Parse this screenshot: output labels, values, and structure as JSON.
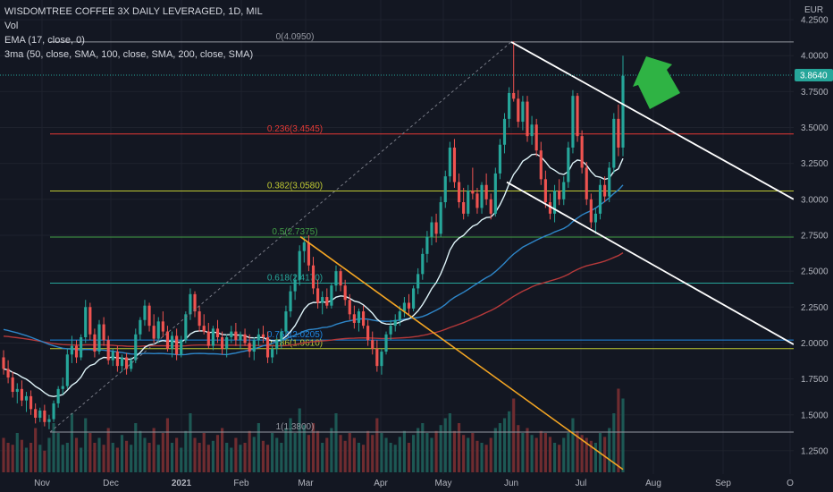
{
  "legend": {
    "title": "WISDOMTREE COFFEE 3X DAILY LEVERAGED, 1D, MIL",
    "vol": "Vol",
    "ema": "EMA (17, close, 0)",
    "ma3": "3ma (50, close, SMA, 100, close, SMA, 200, close, SMA)"
  },
  "currency": "EUR",
  "last_price": "3.8640",
  "colors": {
    "bg": "#131722",
    "up": "#26a69a",
    "down": "#ef5350",
    "ema": "#dff4f9",
    "sma50": "#2e86c9",
    "sma100": "#b5393a",
    "sma200": "#b23a3a",
    "channel": "#ffffff",
    "trend": "#f5a623",
    "arrow": "#2fb344",
    "price_tag": "#26a69a"
  },
  "chart_data": {
    "type": "candlestick",
    "ylim": [
      1.1,
      4.3
    ],
    "y_ticks": [
      "4.2500",
      "4.0000",
      "3.7500",
      "3.5000",
      "3.2500",
      "3.0000",
      "2.7500",
      "2.5000",
      "2.2500",
      "2.0000",
      "1.7500",
      "1.5000",
      "1.2500"
    ],
    "x_ticks": [
      "Nov",
      "Dec",
      "2021",
      "Feb",
      "Mar",
      "Apr",
      "May",
      "Jun",
      "Jul",
      "Aug",
      "Sep",
      "O"
    ],
    "fib_levels": [
      {
        "label": "0(4.0950)",
        "value": 4.095,
        "color": "#9598a1"
      },
      {
        "label": "0.236(3.4545)",
        "value": 3.4545,
        "color": "#e53935"
      },
      {
        "label": "0.382(3.0580)",
        "value": 3.058,
        "color": "#c0ca33"
      },
      {
        "label": "0.5(2.7375)",
        "value": 2.7375,
        "color": "#43a047"
      },
      {
        "label": "0.618(2.4170)",
        "value": 2.417,
        "color": "#26a69a"
      },
      {
        "label": "0.764(2.0205)",
        "value": 2.0205,
        "color": "#1e88e5"
      },
      {
        "label": "0.786(1.9610)",
        "value": 1.961,
        "color": "#c0ca33"
      },
      {
        "label": "1(1.3800)",
        "value": 1.38,
        "color": "#9598a1"
      }
    ],
    "candles": [
      [
        1.9,
        1.95,
        1.78,
        1.82
      ],
      [
        1.82,
        1.88,
        1.72,
        1.76
      ],
      [
        1.76,
        1.8,
        1.62,
        1.66
      ],
      [
        1.66,
        1.72,
        1.58,
        1.68
      ],
      [
        1.68,
        1.74,
        1.56,
        1.6
      ],
      [
        1.6,
        1.66,
        1.52,
        1.63
      ],
      [
        1.63,
        1.67,
        1.5,
        1.54
      ],
      [
        1.54,
        1.58,
        1.44,
        1.48
      ],
      [
        1.48,
        1.55,
        1.45,
        1.53
      ],
      [
        1.53,
        1.57,
        1.42,
        1.45
      ],
      [
        1.45,
        1.5,
        1.4,
        1.47
      ],
      [
        1.47,
        1.6,
        1.45,
        1.58
      ],
      [
        1.58,
        1.7,
        1.55,
        1.68
      ],
      [
        1.68,
        1.76,
        1.64,
        1.7
      ],
      [
        1.7,
        1.96,
        1.68,
        1.92
      ],
      [
        1.92,
        2.05,
        1.86,
        1.98
      ],
      [
        1.98,
        2.02,
        1.86,
        1.9
      ],
      [
        1.9,
        2.06,
        1.88,
        2.04
      ],
      [
        2.04,
        2.3,
        2.0,
        2.25
      ],
      [
        2.25,
        2.28,
        2.02,
        2.06
      ],
      [
        2.06,
        2.1,
        1.9,
        1.94
      ],
      [
        1.94,
        2.16,
        1.92,
        2.13
      ],
      [
        2.13,
        2.18,
        1.98,
        2.02
      ],
      [
        2.02,
        2.05,
        1.85,
        1.88
      ],
      [
        1.88,
        1.96,
        1.84,
        1.94
      ],
      [
        1.94,
        1.98,
        1.8,
        1.84
      ],
      [
        1.84,
        1.92,
        1.8,
        1.9
      ],
      [
        1.9,
        1.93,
        1.78,
        1.82
      ],
      [
        1.82,
        1.9,
        1.8,
        1.88
      ],
      [
        1.88,
        2.1,
        1.86,
        2.06
      ],
      [
        2.06,
        2.18,
        2.02,
        2.16
      ],
      [
        2.16,
        2.3,
        2.12,
        2.26
      ],
      [
        2.26,
        2.28,
        2.08,
        2.12
      ],
      [
        2.12,
        2.2,
        2.0,
        2.03
      ],
      [
        2.03,
        2.18,
        2.0,
        2.15
      ],
      [
        2.15,
        2.22,
        2.04,
        2.08
      ],
      [
        2.08,
        2.12,
        1.94,
        1.96
      ],
      [
        1.96,
        2.08,
        1.9,
        2.05
      ],
      [
        2.05,
        2.1,
        1.88,
        1.92
      ],
      [
        1.92,
        2.05,
        1.9,
        2.02
      ],
      [
        2.02,
        2.22,
        2.0,
        2.2
      ],
      [
        2.2,
        2.38,
        2.16,
        2.34
      ],
      [
        2.34,
        2.36,
        2.18,
        2.22
      ],
      [
        2.22,
        2.26,
        2.08,
        2.12
      ],
      [
        2.12,
        2.2,
        2.06,
        2.08
      ],
      [
        2.08,
        2.14,
        1.96,
        1.98
      ],
      [
        1.98,
        2.12,
        1.95,
        2.1
      ],
      [
        2.1,
        2.16,
        2.0,
        2.04
      ],
      [
        2.04,
        2.08,
        1.92,
        1.96
      ],
      [
        1.96,
        2.06,
        1.9,
        2.04
      ],
      [
        2.04,
        2.12,
        2.0,
        2.08
      ],
      [
        2.08,
        2.14,
        1.98,
        2.02
      ],
      [
        2.02,
        2.08,
        1.96,
        2.06
      ],
      [
        2.06,
        2.1,
        1.98,
        2.0
      ],
      [
        2.0,
        2.06,
        1.9,
        1.94
      ],
      [
        1.94,
        2.04,
        1.88,
        2.02
      ],
      [
        2.02,
        2.1,
        1.98,
        2.06
      ],
      [
        2.06,
        2.12,
        2.0,
        2.04
      ],
      [
        2.04,
        2.08,
        1.86,
        1.9
      ],
      [
        1.9,
        1.98,
        1.86,
        1.96
      ],
      [
        1.96,
        2.04,
        1.92,
        2.02
      ],
      [
        2.02,
        2.1,
        1.96,
        2.08
      ],
      [
        2.08,
        2.26,
        2.06,
        2.22
      ],
      [
        2.22,
        2.4,
        2.18,
        2.36
      ],
      [
        2.36,
        2.48,
        2.3,
        2.44
      ],
      [
        2.44,
        2.68,
        2.4,
        2.64
      ],
      [
        2.64,
        2.74,
        2.56,
        2.7
      ],
      [
        2.7,
        2.75,
        2.5,
        2.54
      ],
      [
        2.54,
        2.6,
        2.34,
        2.38
      ],
      [
        2.38,
        2.44,
        2.24,
        2.28
      ],
      [
        2.28,
        2.36,
        2.2,
        2.32
      ],
      [
        2.32,
        2.38,
        2.24,
        2.26
      ],
      [
        2.26,
        2.42,
        2.24,
        2.4
      ],
      [
        2.4,
        2.54,
        2.36,
        2.5
      ],
      [
        2.5,
        2.52,
        2.36,
        2.4
      ],
      [
        2.4,
        2.44,
        2.26,
        2.3
      ],
      [
        2.3,
        2.34,
        2.16,
        2.2
      ],
      [
        2.2,
        2.26,
        2.1,
        2.14
      ],
      [
        2.14,
        2.24,
        2.08,
        2.22
      ],
      [
        2.22,
        2.26,
        2.1,
        2.12
      ],
      [
        2.12,
        2.16,
        1.98,
        2.02
      ],
      [
        2.02,
        2.08,
        1.92,
        1.96
      ],
      [
        1.96,
        2.02,
        1.8,
        1.84
      ],
      [
        1.84,
        1.96,
        1.78,
        1.94
      ],
      [
        1.94,
        2.08,
        1.92,
        2.06
      ],
      [
        2.06,
        2.16,
        2.02,
        2.12
      ],
      [
        2.12,
        2.2,
        2.08,
        2.16
      ],
      [
        2.16,
        2.26,
        2.12,
        2.22
      ],
      [
        2.22,
        2.32,
        2.18,
        2.28
      ],
      [
        2.28,
        2.34,
        2.2,
        2.24
      ],
      [
        2.24,
        2.4,
        2.22,
        2.38
      ],
      [
        2.38,
        2.52,
        2.34,
        2.48
      ],
      [
        2.48,
        2.66,
        2.44,
        2.62
      ],
      [
        2.62,
        2.78,
        2.56,
        2.74
      ],
      [
        2.74,
        2.88,
        2.68,
        2.84
      ],
      [
        2.84,
        2.9,
        2.7,
        2.76
      ],
      [
        2.76,
        3.02,
        2.74,
        2.98
      ],
      [
        2.98,
        3.2,
        2.94,
        3.16
      ],
      [
        3.16,
        3.4,
        3.12,
        3.36
      ],
      [
        3.36,
        3.42,
        3.08,
        3.12
      ],
      [
        3.12,
        3.18,
        2.94,
        2.98
      ],
      [
        2.98,
        3.08,
        2.86,
        2.9
      ],
      [
        2.9,
        3.1,
        2.88,
        3.06
      ],
      [
        3.06,
        3.22,
        3.0,
        3.04
      ],
      [
        3.04,
        3.08,
        2.9,
        2.94
      ],
      [
        2.94,
        3.12,
        2.9,
        3.1
      ],
      [
        3.1,
        3.18,
        2.96,
        3.0
      ],
      [
        3.0,
        3.04,
        2.86,
        2.9
      ],
      [
        2.9,
        3.22,
        2.88,
        3.18
      ],
      [
        3.18,
        3.42,
        3.14,
        3.38
      ],
      [
        3.38,
        3.6,
        3.32,
        3.56
      ],
      [
        3.56,
        3.78,
        3.5,
        3.74
      ],
      [
        3.74,
        4.1,
        3.68,
        3.7
      ],
      [
        3.7,
        3.76,
        3.5,
        3.54
      ],
      [
        3.54,
        3.72,
        3.48,
        3.68
      ],
      [
        3.68,
        3.72,
        3.4,
        3.44
      ],
      [
        3.44,
        3.58,
        3.38,
        3.52
      ],
      [
        3.52,
        3.56,
        3.3,
        3.34
      ],
      [
        3.34,
        3.4,
        3.1,
        3.14
      ],
      [
        3.14,
        3.2,
        2.94,
        2.98
      ],
      [
        2.98,
        3.04,
        2.86,
        2.9
      ],
      [
        2.9,
        3.1,
        2.84,
        3.06
      ],
      [
        3.06,
        3.14,
        2.96,
        3.0
      ],
      [
        3.0,
        3.16,
        2.96,
        3.12
      ],
      [
        3.12,
        3.4,
        3.08,
        3.36
      ],
      [
        3.36,
        3.76,
        3.32,
        3.72
      ],
      [
        3.72,
        3.74,
        3.4,
        3.44
      ],
      [
        3.44,
        3.48,
        3.18,
        3.22
      ],
      [
        3.22,
        3.26,
        2.96,
        3.0
      ],
      [
        3.0,
        3.04,
        2.8,
        2.84
      ],
      [
        2.84,
        2.94,
        2.76,
        2.9
      ],
      [
        2.9,
        3.14,
        2.86,
        3.1
      ],
      [
        3.1,
        3.16,
        2.98,
        3.02
      ],
      [
        3.02,
        3.26,
        2.98,
        3.22
      ],
      [
        3.22,
        3.6,
        3.18,
        3.56
      ],
      [
        3.56,
        3.66,
        3.3,
        3.36
      ],
      [
        3.36,
        4.0,
        3.3,
        3.86
      ]
    ],
    "volumes": [
      0.35,
      0.3,
      0.28,
      0.4,
      0.33,
      0.25,
      0.3,
      0.45,
      0.28,
      0.22,
      0.35,
      0.5,
      0.4,
      0.28,
      0.3,
      0.6,
      0.35,
      0.25,
      0.55,
      0.4,
      0.3,
      0.35,
      0.28,
      0.45,
      0.3,
      0.25,
      0.38,
      0.32,
      0.28,
      0.5,
      0.42,
      0.35,
      0.3,
      0.45,
      0.28,
      0.4,
      0.55,
      0.3,
      0.35,
      0.25,
      0.42,
      0.6,
      0.35,
      0.3,
      0.4,
      0.28,
      0.32,
      0.38,
      0.45,
      0.3,
      0.25,
      0.35,
      0.28,
      0.3,
      0.42,
      0.36,
      0.5,
      0.32,
      0.28,
      0.4,
      0.35,
      0.3,
      0.45,
      0.55,
      0.4,
      0.65,
      0.48,
      0.38,
      0.5,
      0.42,
      0.3,
      0.35,
      0.45,
      0.6,
      0.38,
      0.32,
      0.4,
      0.35,
      0.3,
      0.28,
      0.42,
      0.38,
      0.55,
      0.4,
      0.35,
      0.3,
      0.28,
      0.36,
      0.42,
      0.3,
      0.38,
      0.45,
      0.5,
      0.4,
      0.35,
      0.42,
      0.48,
      0.55,
      0.6,
      0.42,
      0.5,
      0.38,
      0.35,
      0.4,
      0.32,
      0.3,
      0.28,
      0.35,
      0.45,
      0.5,
      0.55,
      0.62,
      0.75,
      0.48,
      0.4,
      0.45,
      0.38,
      0.35,
      0.42,
      0.4,
      0.36,
      0.3,
      0.28,
      0.35,
      0.4,
      0.55,
      0.42,
      0.38,
      0.35,
      0.32,
      0.3,
      0.4,
      0.36,
      0.45,
      0.6,
      0.85,
      0.75
    ]
  }
}
